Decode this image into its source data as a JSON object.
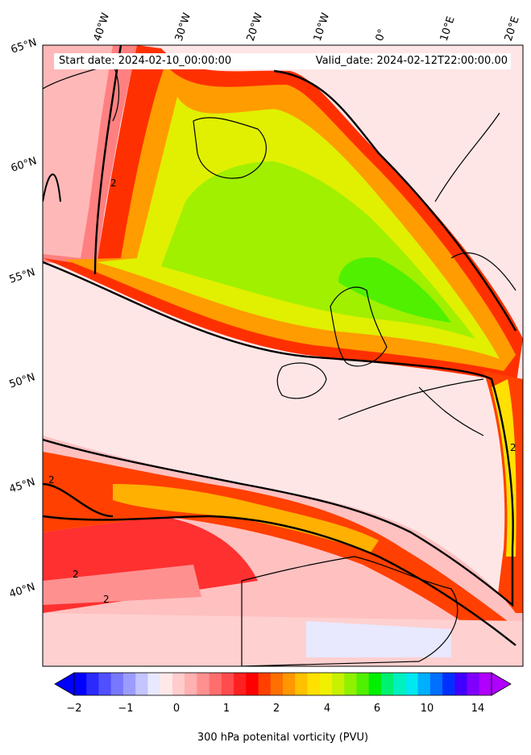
{
  "map": {
    "start_date": "Start date: 2024-02-10_00:00:00",
    "valid_date": "Valid_date: 2024-02-12T22:00:00.00",
    "longitude_labels": [
      "40°W",
      "30°W",
      "20°W",
      "10°W",
      "0°",
      "10°E",
      "20°E"
    ],
    "latitude_labels": [
      "65°N",
      "60°N",
      "55°N",
      "50°N",
      "45°N",
      "40°N"
    ],
    "contour_label": "2"
  },
  "colorbar": {
    "title": "300 hPa potenital vorticity (PVU)",
    "tick_labels": [
      "−2",
      "−1",
      "0",
      "1",
      "2",
      "4",
      "6",
      "10",
      "14"
    ],
    "colors": [
      "#0000ff",
      "#2a2aff",
      "#5050ff",
      "#7878ff",
      "#9c9cff",
      "#c4c4ff",
      "#e8e8ff",
      "#ffe8e8",
      "#ffcccc",
      "#ffb0b0",
      "#ff9090",
      "#ff6e6e",
      "#ff4c4c",
      "#ff2020",
      "#ff0000",
      "#ff4000",
      "#ff7000",
      "#ff9800",
      "#ffc000",
      "#ffe000",
      "#f0f000",
      "#c8f000",
      "#90f000",
      "#50f000",
      "#00f000",
      "#00f070",
      "#00f0c0",
      "#00e8f0",
      "#00b0ff",
      "#0070ff",
      "#0030ff",
      "#4000ff",
      "#8000ff",
      "#b000ff"
    ]
  }
}
